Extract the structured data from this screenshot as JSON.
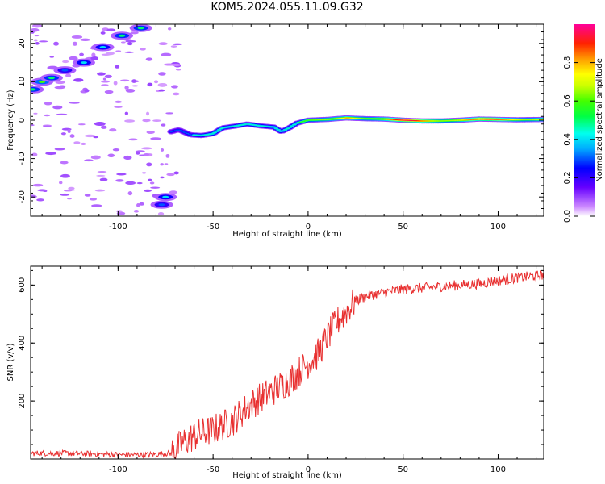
{
  "title": "KOM5.2024.055.11.09.G32",
  "chart_data": [
    {
      "type": "heatmap",
      "xlabel": "Height of straight line (km)",
      "ylabel": "Frequency (Hz)",
      "xlim": [
        -146,
        124
      ],
      "ylim": [
        -25,
        25
      ],
      "xticks": [
        -100,
        -50,
        0,
        50,
        100
      ],
      "yticks": [
        -20,
        -10,
        0,
        10,
        20
      ],
      "colorbar": {
        "label": "Normalized spectral amplitude",
        "range": [
          0,
          1
        ],
        "ticks": [
          0.0,
          0.2,
          0.4,
          0.6,
          0.8
        ]
      },
      "ridge": [
        [
          -72,
          -3
        ],
        [
          -68,
          -2.5
        ],
        [
          -62,
          -3.8
        ],
        [
          -56,
          -4.0
        ],
        [
          -50,
          -3.5
        ],
        [
          -45,
          -2.0
        ],
        [
          -38,
          -1.5
        ],
        [
          -32,
          -1.0
        ],
        [
          -25,
          -1.5
        ],
        [
          -18,
          -1.8
        ],
        [
          -14,
          -3.0
        ],
        [
          -10,
          -2.0
        ],
        [
          -6,
          -0.8
        ],
        [
          0,
          0
        ],
        [
          10,
          0.2
        ],
        [
          20,
          0.6
        ],
        [
          30,
          0.4
        ],
        [
          40,
          0.3
        ],
        [
          50,
          0
        ],
        [
          60,
          -0.2
        ],
        [
          70,
          -0.2
        ],
        [
          80,
          0
        ],
        [
          90,
          0.3
        ],
        [
          100,
          0.2
        ],
        [
          110,
          0.1
        ],
        [
          124,
          0.2
        ]
      ],
      "early_blobs": [
        [
          -145,
          8,
          0.5
        ],
        [
          -140,
          10,
          0.6
        ],
        [
          -135,
          11,
          0.5
        ],
        [
          -128,
          13,
          0.3
        ],
        [
          -118,
          15,
          0.4
        ],
        [
          -108,
          19,
          0.4
        ],
        [
          -98,
          22,
          0.5
        ],
        [
          -88,
          24,
          0.5
        ],
        [
          -75,
          -20,
          0.4
        ],
        [
          -77,
          -22,
          0.3
        ]
      ]
    },
    {
      "type": "line",
      "xlabel": "Height of straight line (km)",
      "ylabel": "SNR (v/v)",
      "xlim": [
        -146,
        124
      ],
      "ylim": [
        0,
        665
      ],
      "xticks": [
        -100,
        -50,
        0,
        50,
        100
      ],
      "yticks": [
        200,
        400,
        600
      ],
      "color": "#e83030",
      "series": [
        {
          "x": [
            -146,
            -130,
            -115,
            -100,
            -85,
            -72,
            -65,
            -60,
            -50,
            -40,
            -30,
            -20,
            -10,
            -5,
            0,
            5,
            10,
            15,
            20,
            25,
            30,
            40,
            50,
            60,
            70,
            80,
            90,
            100,
            110,
            124
          ],
          "values": [
            20,
            20,
            18,
            15,
            15,
            20,
            60,
            80,
            100,
            130,
            190,
            230,
            270,
            300,
            330,
            360,
            420,
            470,
            510,
            545,
            560,
            575,
            585,
            590,
            595,
            600,
            605,
            615,
            625,
            635
          ]
        }
      ]
    }
  ]
}
